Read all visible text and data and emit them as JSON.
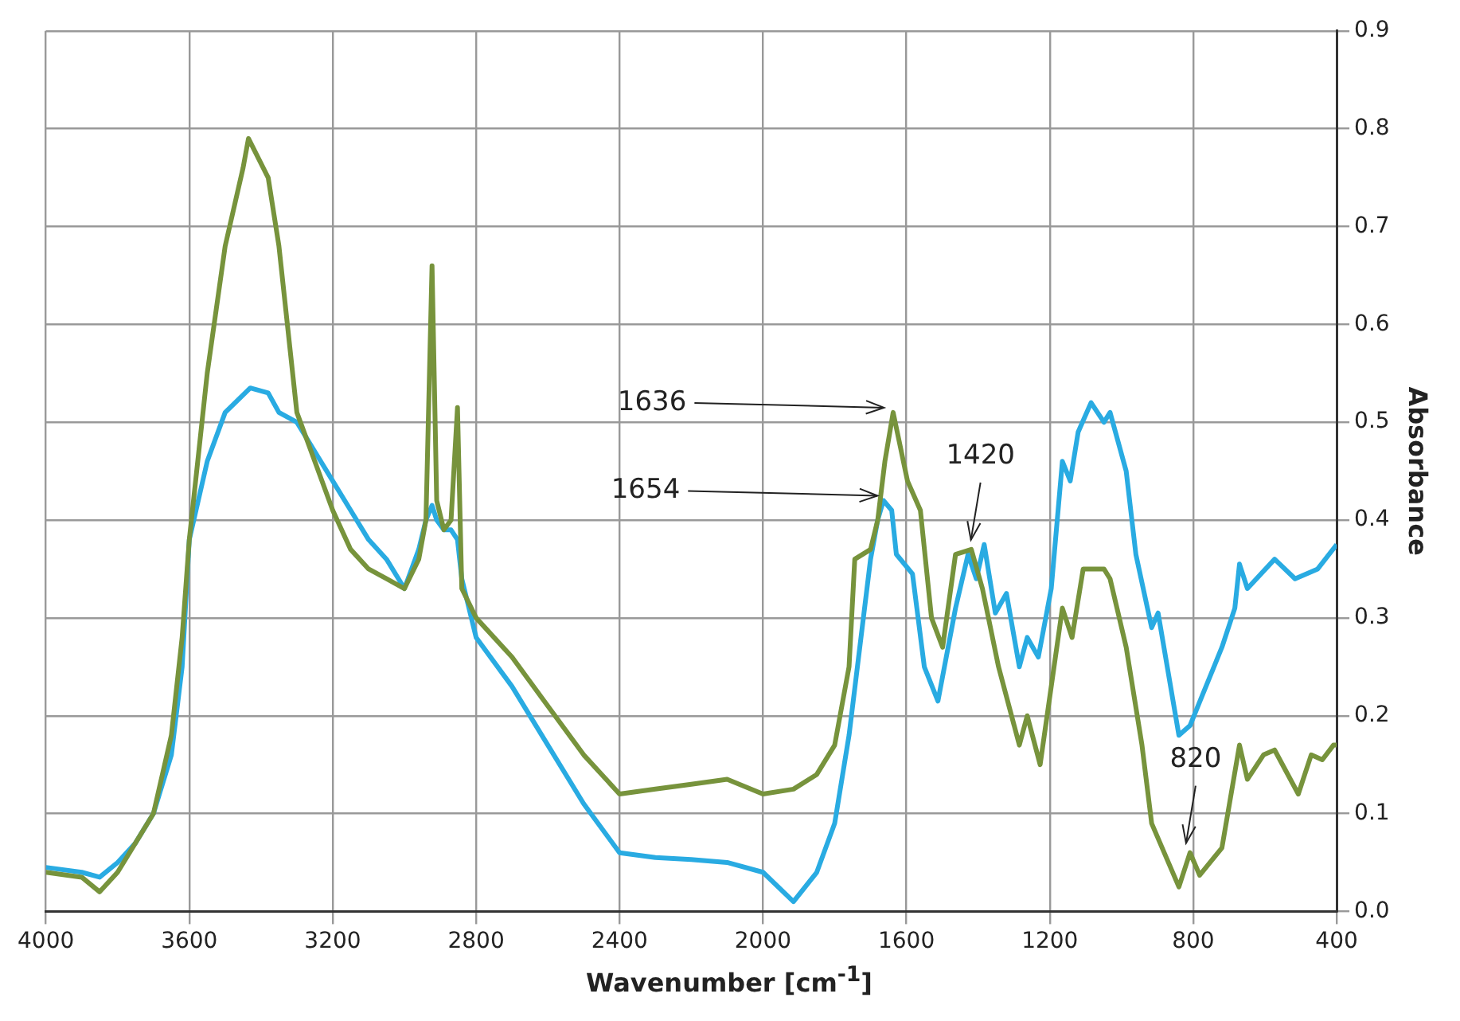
{
  "chart_data": {
    "type": "line",
    "xlabel": "Wavenumber [cm$^{-1}$]",
    "ylabel": "Absorbance",
    "xlim": [
      4000,
      400
    ],
    "xticks": [
      4000,
      3600,
      3200,
      2800,
      2400,
      2000,
      1600,
      1200,
      800,
      400
    ],
    "ylim": [
      0,
      0.9
    ],
    "yticks": [
      {
        "value": 0,
        "label": "0.0"
      },
      {
        "value": 0.1,
        "label": "0.1"
      },
      {
        "value": 0.2,
        "label": "0.2"
      },
      {
        "value": 0.3,
        "label": "0.3"
      },
      {
        "value": 0.4,
        "label": "0.4"
      },
      {
        "value": 0.5,
        "label": "0.5"
      },
      {
        "value": 0.6,
        "label": "0.6"
      },
      {
        "value": 0.7,
        "label": "0.7"
      },
      {
        "value": 0.8,
        "label": "0.8"
      },
      {
        "value": 0.9,
        "label": "0.9"
      }
    ],
    "grid": true,
    "legend": false,
    "marker": "none",
    "line_style": "solid",
    "series": [
      {
        "color": "#77933c",
        "x": [
          4000,
          3900,
          3850,
          3800,
          3750,
          3700,
          3650,
          3620,
          3600,
          3550,
          3500,
          3450,
          3435,
          3380,
          3350,
          3300,
          3250,
          3200,
          3150,
          3100,
          3050,
          3000,
          2960,
          2940,
          2923,
          2910,
          2890,
          2870,
          2852,
          2840,
          2800,
          2700,
          2600,
          2500,
          2400,
          2300,
          2200,
          2100,
          2000,
          1915,
          1850,
          1800,
          1760,
          1744,
          1700,
          1680,
          1660,
          1637,
          1597,
          1561,
          1530,
          1499,
          1463,
          1419,
          1388,
          1343,
          1285,
          1263,
          1227,
          1165,
          1138,
          1107,
          1049,
          1032,
          987,
          943,
          916,
          840,
          809,
          782,
          720,
          671,
          649,
          604,
          573,
          507,
          471,
          440,
          409,
          400
        ],
        "values": [
          0.04,
          0.035,
          0.02,
          0.04,
          0.07,
          0.1,
          0.18,
          0.28,
          0.38,
          0.55,
          0.68,
          0.76,
          0.79,
          0.75,
          0.68,
          0.51,
          0.46,
          0.41,
          0.37,
          0.35,
          0.34,
          0.33,
          0.36,
          0.4,
          0.66,
          0.42,
          0.39,
          0.4,
          0.515,
          0.33,
          0.3,
          0.26,
          0.21,
          0.16,
          0.12,
          0.125,
          0.13,
          0.135,
          0.12,
          0.125,
          0.14,
          0.17,
          0.25,
          0.36,
          0.37,
          0.4,
          0.46,
          0.51,
          0.44,
          0.41,
          0.3,
          0.27,
          0.365,
          0.37,
          0.33,
          0.25,
          0.17,
          0.2,
          0.15,
          0.31,
          0.28,
          0.35,
          0.35,
          0.34,
          0.27,
          0.17,
          0.09,
          0.025,
          0.06,
          0.037,
          0.065,
          0.17,
          0.135,
          0.16,
          0.165,
          0.12,
          0.16,
          0.155,
          0.17,
          0.17
        ]
      },
      {
        "color": "#29abe2",
        "x": [
          4000,
          3900,
          3850,
          3800,
          3750,
          3700,
          3650,
          3620,
          3600,
          3550,
          3500,
          3430,
          3380,
          3350,
          3300,
          3250,
          3200,
          3150,
          3100,
          3050,
          3000,
          2960,
          2940,
          2923,
          2910,
          2890,
          2870,
          2852,
          2840,
          2800,
          2700,
          2600,
          2500,
          2400,
          2300,
          2200,
          2100,
          2000,
          1915,
          1850,
          1800,
          1760,
          1720,
          1700,
          1680,
          1664,
          1641,
          1628,
          1583,
          1550,
          1512,
          1463,
          1428,
          1405,
          1383,
          1352,
          1321,
          1285,
          1263,
          1232,
          1196,
          1165,
          1143,
          1121,
          1085,
          1049,
          1032,
          987,
          960,
          916,
          898,
          840,
          809,
          720,
          684,
          671,
          649,
          573,
          516,
          453,
          400
        ],
        "values": [
          0.045,
          0.04,
          0.035,
          0.05,
          0.07,
          0.1,
          0.16,
          0.25,
          0.38,
          0.46,
          0.51,
          0.535,
          0.53,
          0.51,
          0.5,
          0.47,
          0.44,
          0.41,
          0.38,
          0.36,
          0.33,
          0.37,
          0.4,
          0.415,
          0.4,
          0.39,
          0.39,
          0.38,
          0.34,
          0.28,
          0.23,
          0.17,
          0.11,
          0.06,
          0.055,
          0.053,
          0.05,
          0.04,
          0.01,
          0.04,
          0.09,
          0.18,
          0.3,
          0.36,
          0.4,
          0.42,
          0.41,
          0.365,
          0.345,
          0.25,
          0.215,
          0.31,
          0.365,
          0.34,
          0.375,
          0.305,
          0.325,
          0.25,
          0.28,
          0.26,
          0.33,
          0.46,
          0.44,
          0.49,
          0.52,
          0.5,
          0.51,
          0.45,
          0.365,
          0.29,
          0.305,
          0.18,
          0.19,
          0.27,
          0.31,
          0.355,
          0.33,
          0.36,
          0.34,
          0.35,
          0.375
        ]
      }
    ],
    "annotations": [
      {
        "text": "1636",
        "x": 1636,
        "y": 0.51
      },
      {
        "text": "1654",
        "x": 1654,
        "y": 0.42
      },
      {
        "text": "1420",
        "x": 1420,
        "y": 0.37
      },
      {
        "text": "820",
        "x": 820,
        "y": 0.06
      }
    ]
  }
}
